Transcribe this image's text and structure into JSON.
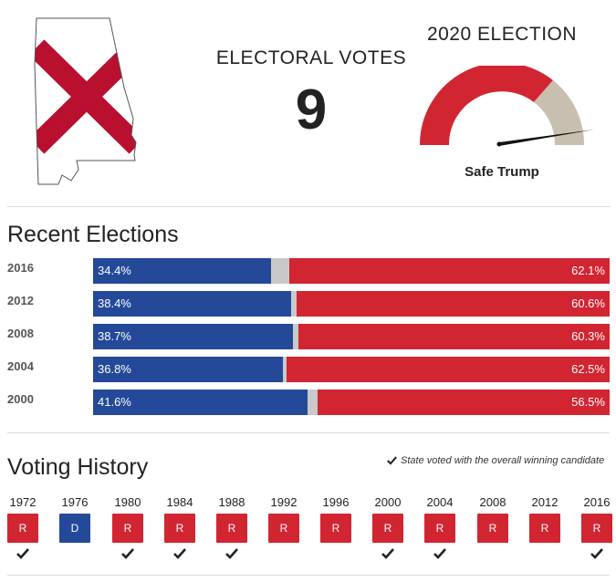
{
  "header": {
    "ev_label": "ELECTORAL VOTES",
    "ev_value": "9",
    "election_title": "2020 ELECTION",
    "rating": "Safe Trump",
    "gauge_level": 0.95
  },
  "colors": {
    "democrat": "#244999",
    "republican": "#d22532",
    "other": "#c9c9c9"
  },
  "recent": {
    "title": "Recent Elections",
    "rows": [
      {
        "year": "2016",
        "dem": 34.4,
        "rep": 62.1,
        "dem_label": "34.4%",
        "rep_label": "62.1%"
      },
      {
        "year": "2012",
        "dem": 38.4,
        "rep": 60.6,
        "dem_label": "38.4%",
        "rep_label": "60.6%"
      },
      {
        "year": "2008",
        "dem": 38.7,
        "rep": 60.3,
        "dem_label": "38.7%",
        "rep_label": "60.3%"
      },
      {
        "year": "2004",
        "dem": 36.8,
        "rep": 62.5,
        "dem_label": "36.8%",
        "rep_label": "62.5%"
      },
      {
        "year": "2000",
        "dem": 41.6,
        "rep": 56.5,
        "dem_label": "41.6%",
        "rep_label": "56.5%"
      }
    ]
  },
  "history": {
    "title": "Voting History",
    "legend": "State voted with the overall winning candidate",
    "items": [
      {
        "year": "1972",
        "party": "R",
        "winner": true
      },
      {
        "year": "1976",
        "party": "D",
        "winner": false
      },
      {
        "year": "1980",
        "party": "R",
        "winner": true
      },
      {
        "year": "1984",
        "party": "R",
        "winner": true
      },
      {
        "year": "1988",
        "party": "R",
        "winner": true
      },
      {
        "year": "1992",
        "party": "R",
        "winner": false
      },
      {
        "year": "1996",
        "party": "R",
        "winner": false
      },
      {
        "year": "2000",
        "party": "R",
        "winner": true
      },
      {
        "year": "2004",
        "party": "R",
        "winner": true
      },
      {
        "year": "2008",
        "party": "R",
        "winner": false
      },
      {
        "year": "2012",
        "party": "R",
        "winner": false
      },
      {
        "year": "2016",
        "party": "R",
        "winner": true
      }
    ]
  }
}
